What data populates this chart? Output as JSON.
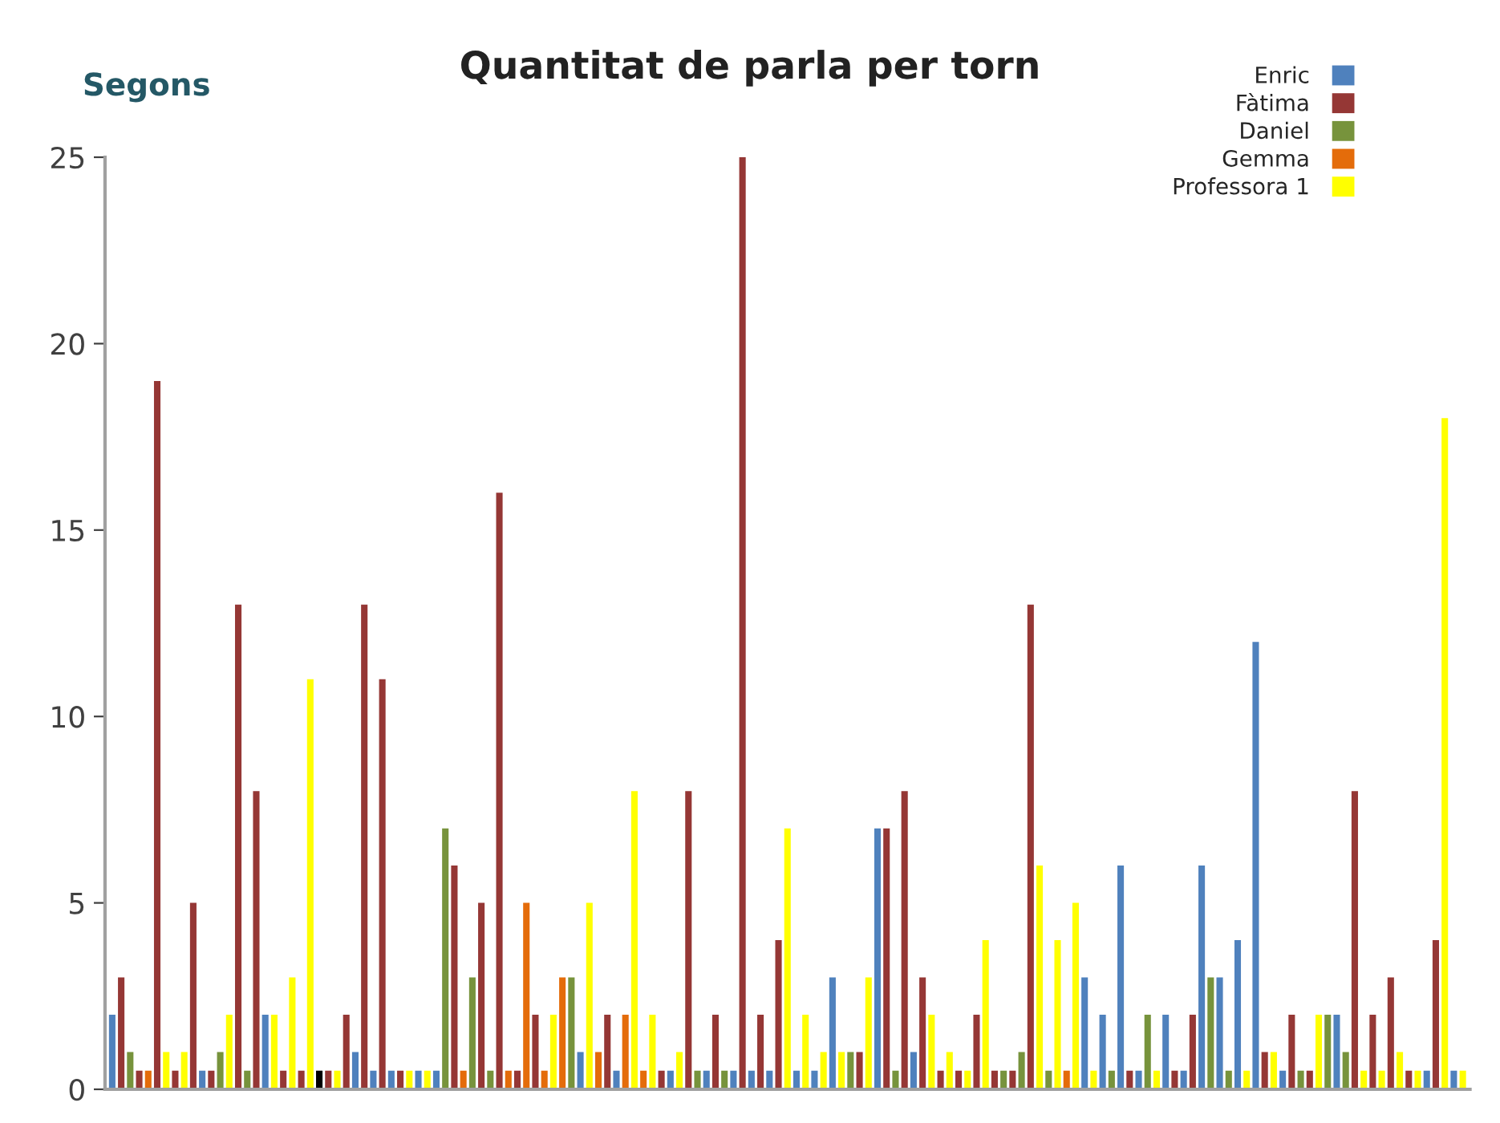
{
  "chart_data": {
    "type": "bar",
    "title": "Quantitat de parla per torn",
    "ylabel": "Segons",
    "categories": [
      null,
      null,
      null,
      null,
      null,
      null,
      null,
      null,
      null,
      null,
      null,
      null,
      null,
      null,
      null,
      null,
      null,
      null,
      null,
      null,
      null,
      null,
      null,
      null,
      null,
      null,
      null,
      null,
      null,
      null,
      null,
      null,
      null,
      null,
      null,
      null,
      null,
      null,
      null,
      null,
      null,
      null,
      null,
      null,
      null,
      null,
      null,
      null,
      null,
      null,
      null,
      null,
      null,
      null,
      null,
      null,
      null,
      null,
      null,
      null,
      null,
      null,
      null,
      null,
      null,
      null,
      null,
      null,
      null,
      null,
      null,
      null,
      null,
      null,
      null,
      null,
      null,
      null,
      null,
      null,
      null,
      null,
      null,
      null,
      null,
      null,
      null,
      null,
      null,
      null,
      null,
      null,
      null,
      null,
      null,
      null,
      null,
      null,
      null,
      null,
      null,
      null,
      null,
      null,
      null,
      null,
      null,
      null,
      null,
      null,
      null,
      null,
      null,
      null,
      null,
      null,
      null,
      null,
      null,
      null,
      null,
      null,
      null,
      null,
      null,
      null,
      null,
      null,
      null,
      null,
      null,
      null,
      null,
      null,
      null,
      null,
      null,
      null,
      null,
      null,
      null,
      null,
      null,
      null,
      null,
      null,
      null,
      null,
      null,
      null,
      null
    ],
    "series": [
      {
        "name": "Enric",
        "color": "#4f81bd",
        "values": [
          2,
          null,
          null,
          null,
          null,
          null,
          null,
          null,
          null,
          null,
          0.5,
          null,
          null,
          null,
          null,
          null,
          null,
          2,
          null,
          null,
          null,
          null,
          null,
          null,
          null,
          null,
          null,
          1,
          null,
          0.5,
          null,
          0.5,
          null,
          null,
          0.5,
          null,
          0.5,
          null,
          null,
          null,
          null,
          null,
          null,
          null,
          null,
          null,
          null,
          null,
          null,
          null,
          null,
          null,
          1,
          null,
          null,
          null,
          0.5,
          null,
          null,
          null,
          null,
          null,
          0.5,
          null,
          null,
          null,
          0.5,
          null,
          null,
          0.5,
          null,
          0.5,
          null,
          0.5,
          null,
          null,
          0.5,
          null,
          0.5,
          null,
          3,
          null,
          null,
          null,
          null,
          7,
          null,
          null,
          null,
          1,
          null,
          null,
          null,
          null,
          null,
          null,
          null,
          null,
          null,
          null,
          null,
          null,
          null,
          null,
          null,
          null,
          null,
          null,
          3,
          null,
          2,
          null,
          6,
          null,
          0.5,
          null,
          null,
          2,
          null,
          0.5,
          null,
          6,
          null,
          3,
          null,
          4,
          null,
          12,
          null,
          null,
          0.5,
          null,
          null,
          null,
          null,
          null,
          2,
          null,
          null,
          null,
          null,
          null,
          null,
          null,
          null,
          null,
          0.5,
          null,
          null,
          0.5,
          null
        ]
      },
      {
        "name": "Fàtima",
        "color": "#953735",
        "values": [
          null,
          3,
          null,
          0.5,
          null,
          19,
          null,
          0.5,
          null,
          5,
          null,
          0.5,
          null,
          null,
          13,
          null,
          8,
          null,
          null,
          0.5,
          null,
          0.5,
          null,
          null,
          0.5,
          null,
          2,
          null,
          13,
          null,
          11,
          null,
          0.5,
          null,
          null,
          null,
          null,
          null,
          6,
          null,
          null,
          5,
          null,
          16,
          null,
          0.5,
          null,
          2,
          null,
          null,
          null,
          null,
          null,
          null,
          null,
          2,
          null,
          null,
          null,
          null,
          null,
          0.5,
          null,
          null,
          8,
          null,
          null,
          2,
          null,
          null,
          25,
          null,
          2,
          null,
          4,
          null,
          null,
          null,
          null,
          null,
          null,
          null,
          null,
          1,
          null,
          null,
          7,
          null,
          8,
          null,
          3,
          null,
          0.5,
          null,
          0.5,
          null,
          2,
          null,
          0.5,
          null,
          0.5,
          null,
          13,
          null,
          null,
          null,
          null,
          null,
          null,
          null,
          null,
          null,
          null,
          0.5,
          null,
          null,
          null,
          null,
          0.5,
          null,
          2,
          null,
          null,
          null,
          null,
          null,
          null,
          null,
          1,
          null,
          null,
          2,
          null,
          0.5,
          null,
          null,
          null,
          null,
          8,
          null,
          2,
          null,
          3,
          null,
          0.5,
          null,
          null,
          4,
          null,
          null,
          null
        ]
      },
      {
        "name": "Daniel",
        "color": "#77933c",
        "values": [
          null,
          null,
          1,
          null,
          null,
          null,
          null,
          null,
          null,
          null,
          null,
          null,
          1,
          null,
          null,
          0.5,
          null,
          null,
          null,
          null,
          null,
          null,
          null,
          null,
          null,
          null,
          null,
          null,
          null,
          null,
          null,
          null,
          null,
          null,
          null,
          null,
          null,
          7,
          null,
          null,
          3,
          null,
          0.5,
          null,
          null,
          null,
          null,
          null,
          null,
          null,
          null,
          3,
          null,
          null,
          null,
          null,
          null,
          null,
          null,
          null,
          null,
          null,
          null,
          null,
          null,
          0.5,
          null,
          null,
          0.5,
          null,
          null,
          null,
          null,
          null,
          null,
          null,
          null,
          null,
          null,
          null,
          null,
          null,
          1,
          null,
          null,
          null,
          null,
          0.5,
          null,
          null,
          null,
          null,
          null,
          null,
          null,
          null,
          null,
          null,
          null,
          0.5,
          null,
          1,
          null,
          null,
          0.5,
          null,
          null,
          null,
          null,
          null,
          null,
          0.5,
          null,
          null,
          null,
          2,
          null,
          null,
          null,
          null,
          null,
          null,
          3,
          null,
          0.5,
          null,
          null,
          null,
          null,
          null,
          null,
          null,
          0.5,
          null,
          null,
          2,
          null,
          1,
          null,
          null,
          null,
          null,
          null,
          null,
          null,
          null,
          null,
          null,
          null,
          null,
          null
        ]
      },
      {
        "name": "Gemma",
        "color": "#e46c0a",
        "values": [
          null,
          null,
          null,
          null,
          0.5,
          null,
          null,
          null,
          null,
          null,
          null,
          null,
          null,
          null,
          null,
          null,
          null,
          null,
          null,
          null,
          null,
          null,
          null,
          null,
          null,
          null,
          null,
          null,
          null,
          null,
          null,
          null,
          null,
          null,
          null,
          null,
          null,
          null,
          null,
          0.5,
          null,
          null,
          null,
          null,
          0.5,
          null,
          5,
          null,
          0.5,
          null,
          3,
          null,
          null,
          null,
          1,
          null,
          null,
          2,
          null,
          0.5,
          null,
          null,
          null,
          null,
          null,
          null,
          null,
          null,
          null,
          null,
          null,
          null,
          null,
          null,
          null,
          null,
          null,
          null,
          null,
          null,
          null,
          null,
          null,
          null,
          null,
          null,
          null,
          null,
          null,
          null,
          null,
          null,
          null,
          null,
          null,
          null,
          null,
          null,
          null,
          null,
          null,
          null,
          null,
          null,
          null,
          null,
          0.5,
          null,
          null,
          null,
          null,
          null,
          null,
          null,
          null,
          null,
          null,
          null,
          null,
          null,
          null,
          null,
          null,
          null,
          null,
          null,
          null,
          null,
          null,
          null,
          null,
          null,
          null,
          null,
          null,
          null,
          null,
          null,
          null,
          null,
          null,
          null,
          null,
          null,
          null,
          null,
          null,
          null,
          null,
          null,
          null
        ]
      },
      {
        "name": "Professora 1",
        "color": "#ffff00",
        "values": [
          null,
          null,
          null,
          null,
          null,
          null,
          1,
          null,
          1,
          null,
          null,
          null,
          null,
          2,
          null,
          null,
          null,
          null,
          2,
          null,
          3,
          null,
          11,
          null,
          null,
          0.5,
          null,
          null,
          null,
          null,
          null,
          null,
          null,
          0.5,
          null,
          0.5,
          null,
          null,
          null,
          null,
          null,
          null,
          null,
          null,
          null,
          null,
          null,
          null,
          null,
          2,
          null,
          null,
          null,
          5,
          null,
          null,
          null,
          null,
          8,
          null,
          2,
          null,
          null,
          1,
          null,
          null,
          null,
          null,
          null,
          null,
          null,
          null,
          null,
          null,
          null,
          7,
          null,
          2,
          null,
          1,
          null,
          1,
          null,
          null,
          3,
          null,
          null,
          null,
          null,
          null,
          null,
          2,
          null,
          1,
          null,
          0.5,
          null,
          4,
          null,
          null,
          null,
          null,
          null,
          6,
          null,
          4,
          null,
          5,
          null,
          0.5,
          null,
          null,
          null,
          null,
          null,
          null,
          0.5,
          null,
          null,
          null,
          null,
          null,
          null,
          null,
          null,
          null,
          0.5,
          null,
          null,
          1,
          null,
          null,
          null,
          null,
          2,
          null,
          null,
          null,
          null,
          0.5,
          null,
          0.5,
          null,
          1,
          null,
          0.5,
          null,
          null,
          18,
          null,
          0.5
        ]
      },
      {
        "color": "#000000",
        "values": [
          null,
          null,
          null,
          null,
          null,
          null,
          null,
          null,
          null,
          null,
          null,
          null,
          null,
          null,
          null,
          null,
          null,
          null,
          null,
          null,
          null,
          null,
          null,
          0.5,
          null,
          null,
          null,
          null,
          null,
          null,
          null,
          null,
          null,
          null,
          null,
          null,
          null,
          null,
          null,
          null,
          null,
          null,
          null,
          null,
          null,
          null,
          null,
          null,
          null,
          null,
          null,
          null,
          null,
          null,
          null,
          null,
          null,
          null,
          null,
          null,
          null,
          null,
          null,
          null,
          null,
          null,
          null,
          null,
          null,
          null,
          null,
          null,
          null,
          null,
          null,
          null,
          null,
          null,
          null,
          null,
          null,
          null,
          null,
          null,
          null,
          null,
          null,
          null,
          null,
          null,
          null,
          null,
          null,
          null,
          null,
          null,
          null,
          null,
          null,
          null,
          null,
          null,
          null,
          null,
          null,
          null,
          null,
          null,
          null,
          null,
          null,
          null,
          null,
          null,
          null,
          null,
          null,
          null,
          null,
          null,
          null,
          null,
          null,
          null,
          null,
          null,
          null,
          null,
          null,
          null,
          null,
          null,
          null,
          null,
          null,
          null,
          null,
          null,
          null,
          null,
          null,
          null,
          null,
          null,
          null,
          null,
          null,
          null,
          null,
          null,
          null
        ]
      }
    ],
    "ylim": [
      0,
      25
    ],
    "yticks": [
      0,
      5,
      10,
      15,
      20,
      25
    ],
    "grid": false,
    "legend": "top right",
    "tick_labels": "y"
  }
}
